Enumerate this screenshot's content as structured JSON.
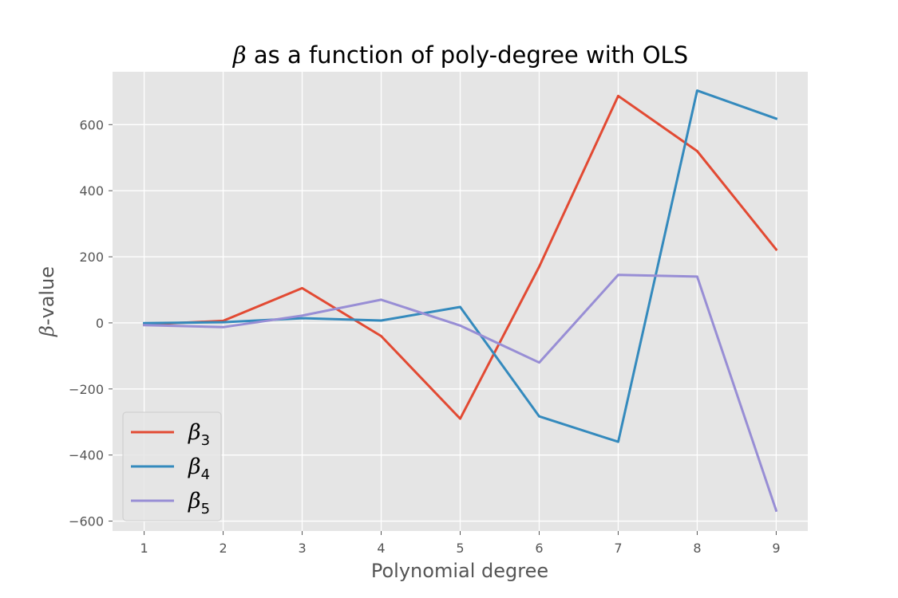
{
  "chart_data": {
    "type": "line",
    "title_symbol": "β",
    "title_rest": " as a function of poly-degree with OLS",
    "xlabel": "Polynomial degree",
    "ylabel_symbol": "β",
    "ylabel_rest": "-value",
    "x": [
      1,
      2,
      3,
      4,
      5,
      6,
      7,
      8,
      9
    ],
    "xlim": [
      0.6,
      9.4
    ],
    "ylim": [
      -630,
      760
    ],
    "yticks": [
      -600,
      -400,
      -200,
      0,
      200,
      400,
      600
    ],
    "ytick_labels": [
      "−600",
      "−400",
      "−200",
      "0",
      "200",
      "400",
      "600"
    ],
    "xtick_labels": [
      "1",
      "2",
      "3",
      "4",
      "5",
      "6",
      "7",
      "8",
      "9"
    ],
    "grid": true,
    "legend_position": "lower-left",
    "series": [
      {
        "name": "β",
        "sub": "3",
        "color": "#E24A33",
        "values": [
          -5,
          6,
          105,
          -40,
          -290,
          170,
          687,
          520,
          222
        ]
      },
      {
        "name": "β",
        "sub": "4",
        "color": "#348ABD",
        "values": [
          -1,
          2,
          14,
          7,
          48,
          -283,
          -360,
          703,
          618
        ]
      },
      {
        "name": "β",
        "sub": "5",
        "color": "#988ED5",
        "values": [
          -7,
          -13,
          22,
          70,
          -8,
          -120,
          145,
          140,
          -568
        ]
      }
    ]
  }
}
